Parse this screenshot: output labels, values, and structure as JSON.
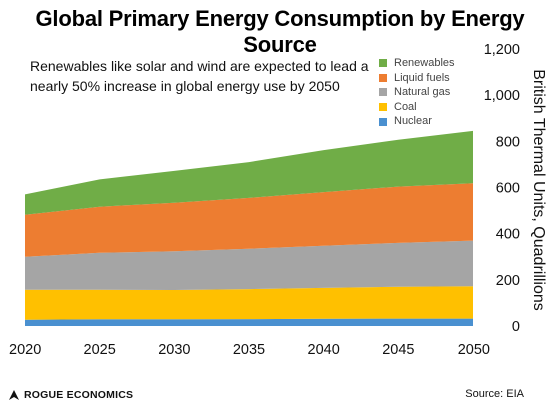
{
  "chart_data": {
    "type": "area",
    "stacked": true,
    "title": "Global Primary Energy Consumption by Energy Source",
    "subtitle": "Renewables like solar and wind are expected to lead a nearly 50% increase in global energy use by 2050",
    "ylabel": "British Thermal Units, Quadrillions",
    "xlabel": "",
    "x": [
      2020,
      2025,
      2030,
      2035,
      2040,
      2045,
      2050
    ],
    "xlim": [
      2020,
      2050
    ],
    "ylim": [
      0,
      1200
    ],
    "yticks": [
      0,
      200,
      400,
      600,
      800,
      "1,000",
      "1,200"
    ],
    "yaxis_position": "right",
    "grid": false,
    "legend_position": "top-right",
    "series": [
      {
        "name": "Nuclear",
        "color": "#4A90D0",
        "values": [
          27,
          29,
          29,
          30,
          31,
          32,
          32
        ]
      },
      {
        "name": "Coal",
        "color": "#FFC000",
        "values": [
          130,
          128,
          127,
          130,
          134,
          138,
          140
        ]
      },
      {
        "name": "Natural gas",
        "color": "#A5A5A5",
        "values": [
          143,
          160,
          168,
          175,
          183,
          190,
          198
        ]
      },
      {
        "name": "Liquid fuels",
        "color": "#ED7D31",
        "values": [
          182,
          200,
          210,
          220,
          232,
          244,
          248
        ]
      },
      {
        "name": "Renewables",
        "color": "#70AD47",
        "values": [
          88,
          118,
          138,
          155,
          182,
          203,
          227
        ]
      }
    ]
  },
  "source": "Source: EIA",
  "brand": "ROGUE ECONOMICS"
}
